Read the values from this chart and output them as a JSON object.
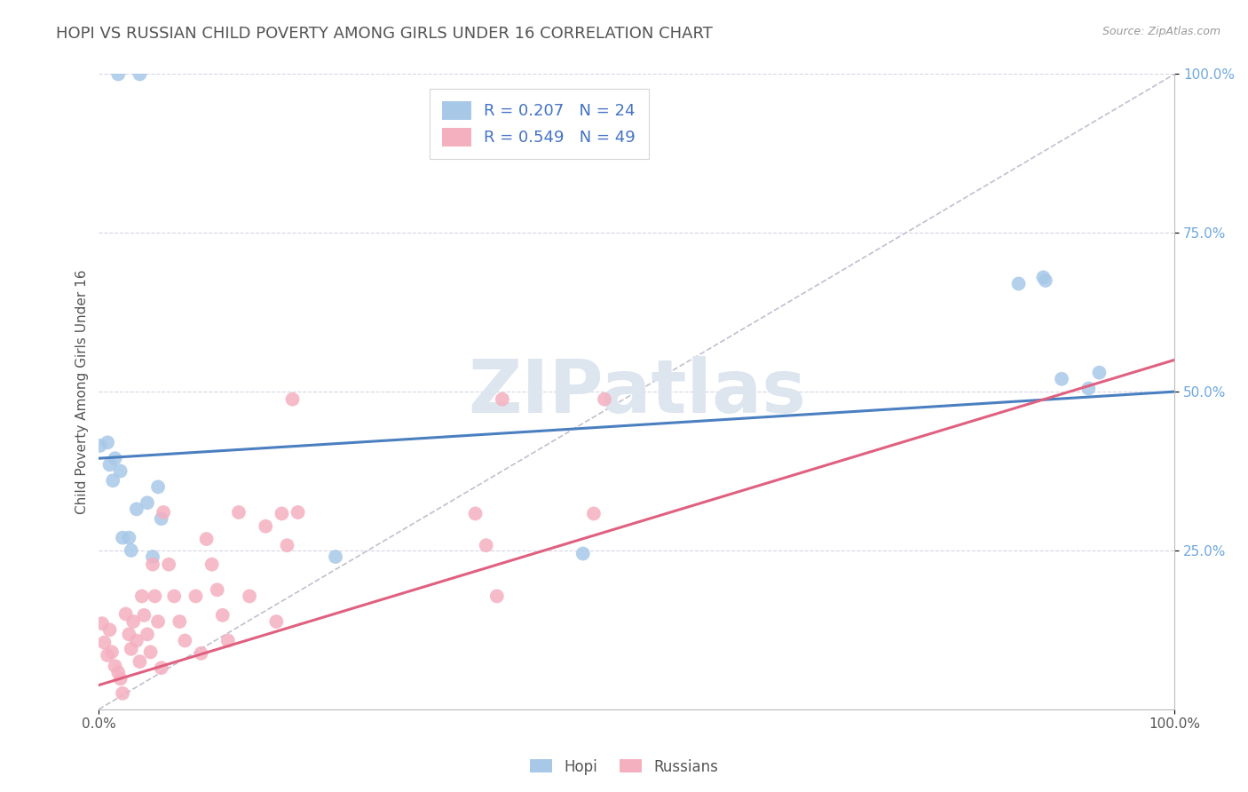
{
  "title": "HOPI VS RUSSIAN CHILD POVERTY AMONG GIRLS UNDER 16 CORRELATION CHART",
  "source": "Source: ZipAtlas.com",
  "ylabel": "Child Poverty Among Girls Under 16",
  "xlim": [
    0,
    1
  ],
  "ylim": [
    0,
    1
  ],
  "watermark": "ZIPatlas",
  "hopi_R": 0.207,
  "hopi_N": 24,
  "russian_R": 0.549,
  "russian_N": 49,
  "hopi_color": "#a8c8e8",
  "russian_color": "#f5b0c0",
  "hopi_line_color": "#4a7fc0",
  "russian_line_color": "#e06080",
  "diagonal_color": "#c0c0d0",
  "hopi_scatter_x": [
    0.018,
    0.038,
    0.001,
    0.008,
    0.01,
    0.013,
    0.015,
    0.02,
    0.022,
    0.028,
    0.035,
    0.045,
    0.055,
    0.058,
    0.03,
    0.05,
    0.22,
    0.45,
    0.855,
    0.88,
    0.895,
    0.92,
    0.878,
    0.93
  ],
  "hopi_scatter_y": [
    1.0,
    1.0,
    0.415,
    0.42,
    0.385,
    0.36,
    0.395,
    0.375,
    0.27,
    0.27,
    0.315,
    0.325,
    0.35,
    0.3,
    0.25,
    0.24,
    0.24,
    0.245,
    0.67,
    0.675,
    0.52,
    0.505,
    0.68,
    0.53
  ],
  "russian_scatter_x": [
    0.003,
    0.005,
    0.008,
    0.01,
    0.012,
    0.015,
    0.018,
    0.02,
    0.022,
    0.025,
    0.028,
    0.03,
    0.032,
    0.035,
    0.038,
    0.04,
    0.042,
    0.045,
    0.048,
    0.05,
    0.052,
    0.055,
    0.058,
    0.06,
    0.065,
    0.07,
    0.075,
    0.08,
    0.09,
    0.095,
    0.1,
    0.105,
    0.11,
    0.115,
    0.12,
    0.13,
    0.14,
    0.155,
    0.165,
    0.17,
    0.175,
    0.18,
    0.185,
    0.35,
    0.36,
    0.37,
    0.375,
    0.46,
    0.47
  ],
  "russian_scatter_y": [
    0.135,
    0.105,
    0.085,
    0.125,
    0.09,
    0.068,
    0.058,
    0.048,
    0.025,
    0.15,
    0.118,
    0.095,
    0.138,
    0.108,
    0.075,
    0.178,
    0.148,
    0.118,
    0.09,
    0.228,
    0.178,
    0.138,
    0.065,
    0.31,
    0.228,
    0.178,
    0.138,
    0.108,
    0.178,
    0.088,
    0.268,
    0.228,
    0.188,
    0.148,
    0.108,
    0.31,
    0.178,
    0.288,
    0.138,
    0.308,
    0.258,
    0.488,
    0.31,
    0.308,
    0.258,
    0.178,
    0.488,
    0.308,
    0.488
  ],
  "hopi_line_x0": 0.0,
  "hopi_line_y0": 0.395,
  "hopi_line_x1": 1.0,
  "hopi_line_y1": 0.5,
  "russian_line_x0": 0.0,
  "russian_line_y0": 0.038,
  "russian_line_x1": 1.0,
  "russian_line_y1": 0.55,
  "background_color": "#ffffff",
  "grid_color": "#d5d5e5",
  "title_fontsize": 13,
  "axis_label_fontsize": 11,
  "tick_fontsize": 11,
  "legend_fontsize": 13,
  "ytick_color": "#6fa8dc"
}
